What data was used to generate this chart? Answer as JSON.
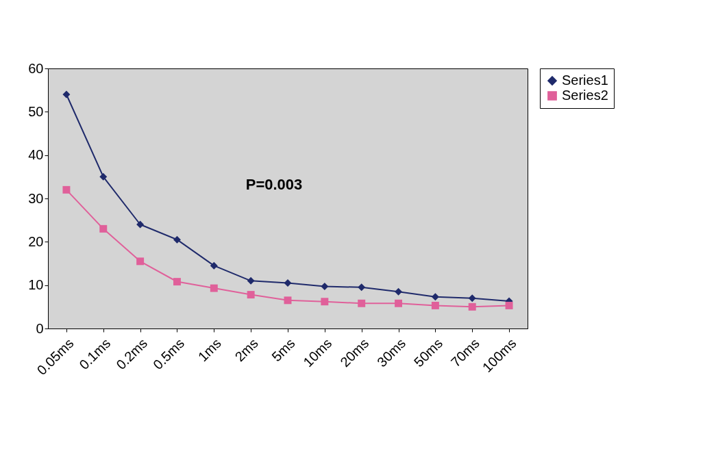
{
  "chart_data": {
    "type": "line",
    "categories": [
      "0.05ms",
      "0.1ms",
      "0.2ms",
      "0.5ms",
      "1ms",
      "2ms",
      "5ms",
      "10ms",
      "20ms",
      "30ms",
      "50ms",
      "70ms",
      "100ms"
    ],
    "series": [
      {
        "name": "Series1",
        "color": "#1f2a6b",
        "marker": "diamond",
        "values": [
          54,
          35,
          24,
          20.5,
          14.5,
          11,
          10.5,
          9.7,
          9.5,
          8.5,
          7.3,
          7,
          6.3
        ]
      },
      {
        "name": "Series2",
        "color": "#e0609a",
        "marker": "square",
        "values": [
          32,
          23,
          15.5,
          10.8,
          9.3,
          7.8,
          6.5,
          6.2,
          5.8,
          5.8,
          5.3,
          5,
          5.3
        ]
      }
    ],
    "ylim": [
      0,
      60
    ],
    "yticks": [
      0,
      10,
      20,
      30,
      40,
      50,
      60
    ],
    "grid": false,
    "legend": "right",
    "line_style": "solid",
    "annotations": [
      "P=0.003"
    ]
  }
}
